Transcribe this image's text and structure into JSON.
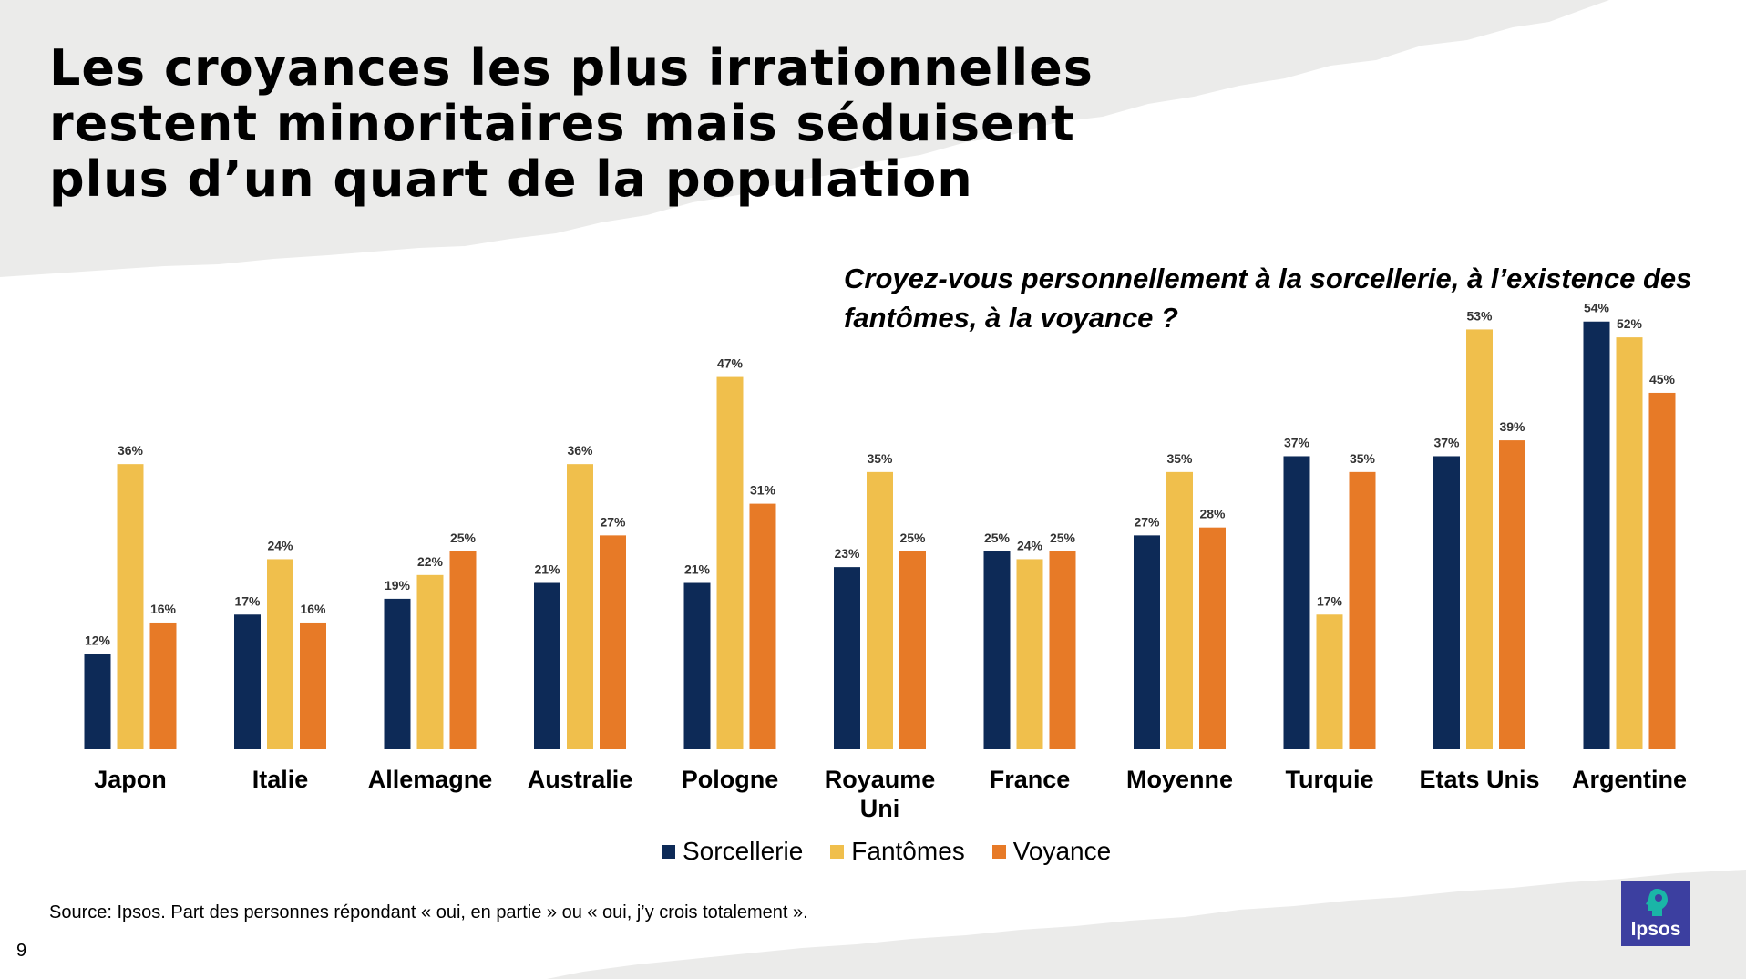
{
  "title": {
    "line1": "Les croyances les plus irrationnelles",
    "line2": "restent minoritaires mais séduisent",
    "line3": "plus d’un quart de la population"
  },
  "question": {
    "line1": "Croyez-vous personnellement à la sorcellerie, à l’existence des",
    "line2": "fantômes, à la voyance ?"
  },
  "legend": [
    "Sorcellerie",
    "Fantômes",
    "Voyance"
  ],
  "source": "Source: Ipsos. Part des personnes répondant « oui, en partie » ou « oui, j’y crois totalement ».",
  "page_number": "9",
  "logo": {
    "text": "Ipsos",
    "color": "#3c3fa0",
    "accent": "#1ab5a7"
  },
  "colors": {
    "sorcellerie": "#0d2a57",
    "fantomes": "#f0bf4c",
    "voyance": "#e77a27",
    "background_band": "#ebebea"
  },
  "chart_data": {
    "type": "bar",
    "categories": [
      [
        "Japon"
      ],
      [
        "Italie"
      ],
      [
        "Allemagne"
      ],
      [
        "Australie"
      ],
      [
        "Pologne"
      ],
      [
        "Royaume",
        "Uni"
      ],
      [
        "France"
      ],
      [
        "Moyenne"
      ],
      [
        "Turquie"
      ],
      [
        "Etats Unis"
      ],
      [
        "Argentine"
      ]
    ],
    "series": [
      {
        "name": "Sorcellerie",
        "values": [
          12,
          17,
          19,
          21,
          21,
          23,
          25,
          27,
          37,
          37,
          54
        ],
        "color": "#0d2a57"
      },
      {
        "name": "Fantômes",
        "values": [
          36,
          24,
          22,
          36,
          47,
          35,
          24,
          35,
          17,
          53,
          52
        ],
        "color": "#f0bf4c"
      },
      {
        "name": "Voyance",
        "values": [
          16,
          16,
          25,
          27,
          31,
          25,
          25,
          28,
          35,
          39,
          45
        ],
        "color": "#e77a27"
      }
    ],
    "value_suffix": "%",
    "ylim": [
      0,
      55
    ],
    "grid": false,
    "legend_position": "bottom"
  }
}
